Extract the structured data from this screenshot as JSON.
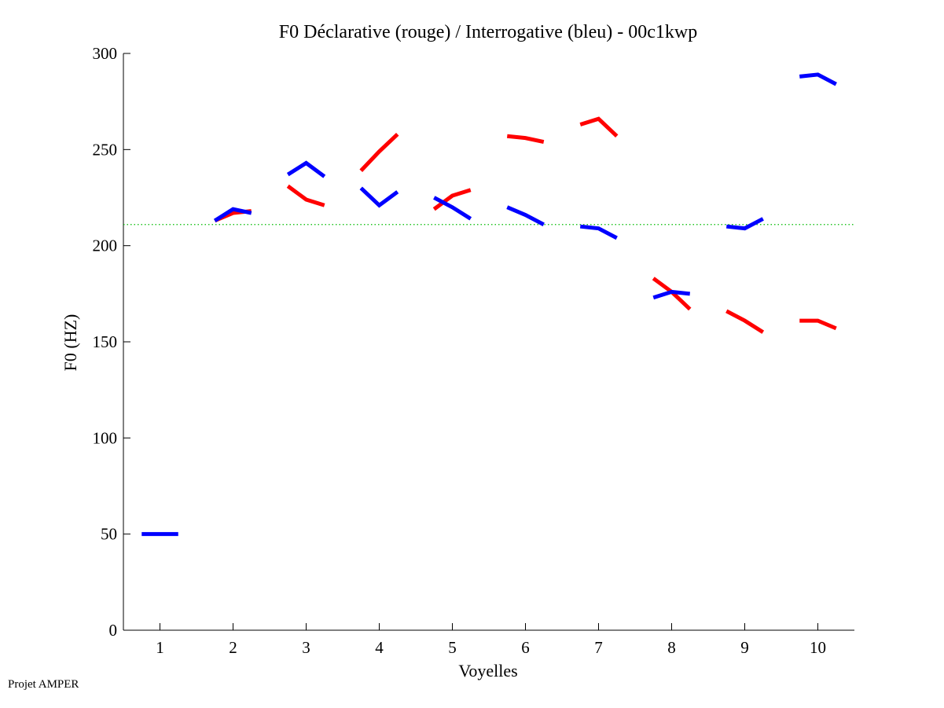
{
  "footer": "Projet AMPER",
  "colors": {
    "declarative": "#ff0000",
    "interrogative": "#0000ff",
    "reference": "#00bb00"
  },
  "chart_data": {
    "type": "line",
    "title": "F0 Déclarative (rouge) / Interrogative (bleu) - 00c1kwp",
    "xlabel": "Voyelles",
    "ylabel": "F0 (HZ)",
    "xlim": [
      0.5,
      10.5
    ],
    "ylim": [
      0,
      300
    ],
    "xticks": [
      1,
      2,
      3,
      4,
      5,
      6,
      7,
      8,
      9,
      10
    ],
    "yticks": [
      0,
      50,
      100,
      150,
      200,
      250,
      300
    ],
    "grid": false,
    "reference_line": {
      "y": 211,
      "style": "dotted",
      "color": "green"
    },
    "series": [
      {
        "color": "red",
        "segments": [
          {
            "vowel": 2,
            "values": [
              [
                1.75,
                213
              ],
              [
                2.0,
                217
              ],
              [
                2.25,
                218
              ]
            ]
          },
          {
            "vowel": 3,
            "values": [
              [
                2.75,
                231
              ],
              [
                3.0,
                224
              ],
              [
                3.25,
                221
              ]
            ]
          },
          {
            "vowel": 4,
            "values": [
              [
                3.75,
                239
              ],
              [
                4.0,
                249
              ],
              [
                4.25,
                258
              ]
            ]
          },
          {
            "vowel": 5,
            "values": [
              [
                4.75,
                219
              ],
              [
                5.0,
                226
              ],
              [
                5.25,
                229
              ]
            ]
          },
          {
            "vowel": 6,
            "values": [
              [
                5.75,
                257
              ],
              [
                6.0,
                256
              ],
              [
                6.25,
                254
              ]
            ]
          },
          {
            "vowel": 7,
            "values": [
              [
                6.75,
                263
              ],
              [
                7.0,
                266
              ],
              [
                7.25,
                257
              ]
            ]
          },
          {
            "vowel": 8,
            "values": [
              [
                7.75,
                183
              ],
              [
                8.0,
                176
              ],
              [
                8.25,
                167
              ]
            ]
          },
          {
            "vowel": 9,
            "values": [
              [
                8.75,
                166
              ],
              [
                9.0,
                161
              ],
              [
                9.25,
                155
              ]
            ]
          },
          {
            "vowel": 10,
            "values": [
              [
                9.75,
                161
              ],
              [
                10.0,
                161
              ],
              [
                10.25,
                157
              ]
            ]
          }
        ]
      },
      {
        "color": "blue",
        "segments": [
          {
            "vowel": 1,
            "values": [
              [
                0.75,
                50
              ],
              [
                1.0,
                50
              ],
              [
                1.25,
                50
              ]
            ]
          },
          {
            "vowel": 2,
            "values": [
              [
                1.75,
                213
              ],
              [
                2.0,
                219
              ],
              [
                2.25,
                217
              ]
            ]
          },
          {
            "vowel": 3,
            "values": [
              [
                2.75,
                237
              ],
              [
                3.0,
                243
              ],
              [
                3.25,
                236
              ]
            ]
          },
          {
            "vowel": 4,
            "values": [
              [
                3.75,
                230
              ],
              [
                4.0,
                221
              ],
              [
                4.25,
                228
              ]
            ]
          },
          {
            "vowel": 5,
            "values": [
              [
                4.75,
                225
              ],
              [
                5.0,
                220
              ],
              [
                5.25,
                214
              ]
            ]
          },
          {
            "vowel": 6,
            "values": [
              [
                5.75,
                220
              ],
              [
                6.0,
                216
              ],
              [
                6.25,
                211
              ]
            ]
          },
          {
            "vowel": 7,
            "values": [
              [
                6.75,
                210
              ],
              [
                7.0,
                209
              ],
              [
                7.25,
                204
              ]
            ]
          },
          {
            "vowel": 8,
            "values": [
              [
                7.75,
                173
              ],
              [
                8.0,
                176
              ],
              [
                8.25,
                175
              ]
            ]
          },
          {
            "vowel": 9,
            "values": [
              [
                8.75,
                210
              ],
              [
                9.0,
                209
              ],
              [
                9.25,
                214
              ]
            ]
          },
          {
            "vowel": 10,
            "values": [
              [
                9.75,
                288
              ],
              [
                10.0,
                289
              ],
              [
                10.25,
                284
              ]
            ]
          }
        ]
      }
    ]
  }
}
